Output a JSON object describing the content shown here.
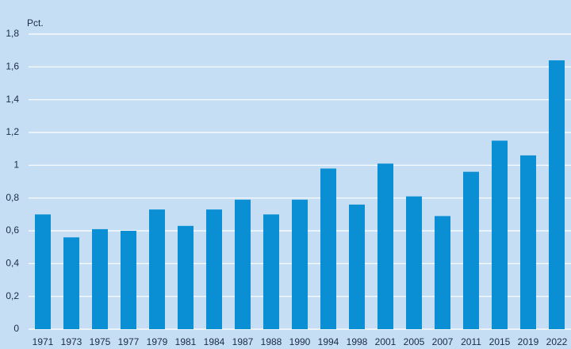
{
  "chart_data": {
    "type": "bar",
    "y_label": "Pct.",
    "categories": [
      "1971",
      "1973",
      "1975",
      "1977",
      "1979",
      "1981",
      "1984",
      "1987",
      "1988",
      "1990",
      "1994",
      "1998",
      "2001",
      "2005",
      "2007",
      "2011",
      "2015",
      "2019",
      "2022"
    ],
    "values": [
      0.7,
      0.56,
      0.61,
      0.6,
      0.73,
      0.63,
      0.73,
      0.79,
      0.7,
      0.79,
      0.98,
      0.76,
      1.01,
      0.81,
      0.69,
      0.96,
      1.15,
      1.06,
      1.64
    ],
    "color": "#0b8fd4",
    "ylim": [
      0,
      1.8
    ],
    "yticks": [
      0,
      {
        "value": 0.2,
        "label": "0,2"
      },
      {
        "value": 0.4,
        "label": "0,4"
      },
      {
        "value": 0.6,
        "label": "0,6"
      },
      {
        "value": 0.8,
        "label": "0,8"
      },
      1,
      {
        "value": 1.2,
        "label": "1,2"
      },
      {
        "value": 1.4,
        "label": "1,4"
      },
      {
        "value": 1.6,
        "label": "1,6"
      },
      {
        "value": 1.8,
        "label": "1,8"
      }
    ],
    "grid": true
  }
}
